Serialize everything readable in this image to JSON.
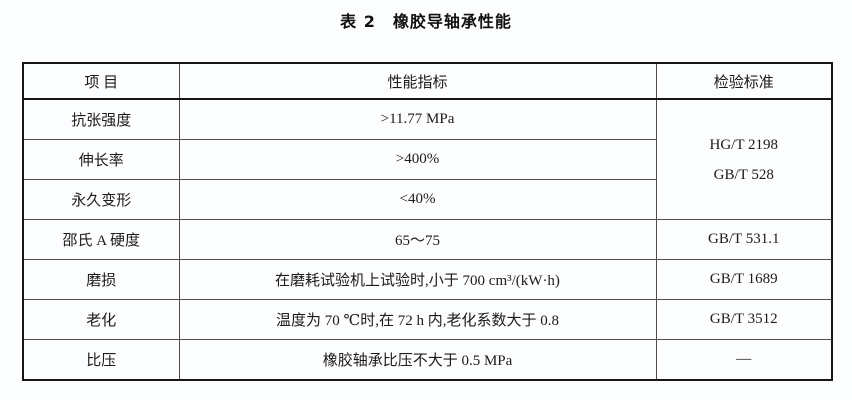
{
  "page": {
    "title": "表 2　橡胶导轴承性能"
  },
  "table": {
    "headers": {
      "item": "项 目",
      "value": "性能指标",
      "standard": "检验标准"
    },
    "merged_standard": {
      "line1": "HG/T 2198",
      "line2": "GB/T 528"
    },
    "rows": [
      {
        "item": "抗张强度",
        "value": ">11.77 MPa"
      },
      {
        "item": "伸长率",
        "value": ">400%"
      },
      {
        "item": "永久变形",
        "value": "<40%"
      },
      {
        "item": "邵氏 A 硬度",
        "value": "65～75",
        "standard": "GB/T 531.1"
      },
      {
        "item": "磨损",
        "value": "在磨耗试验机上试验时,小于 700 cm³/(kW·h)",
        "standard": "GB/T 1689"
      },
      {
        "item": "老化",
        "value": "温度为 70 ℃时,在 72 h 内,老化系数大于 0.8",
        "standard": "GB/T 3512"
      },
      {
        "item": "比压",
        "value": "橡胶轴承比压不大于 0.5 MPa",
        "standard": "—"
      }
    ]
  }
}
